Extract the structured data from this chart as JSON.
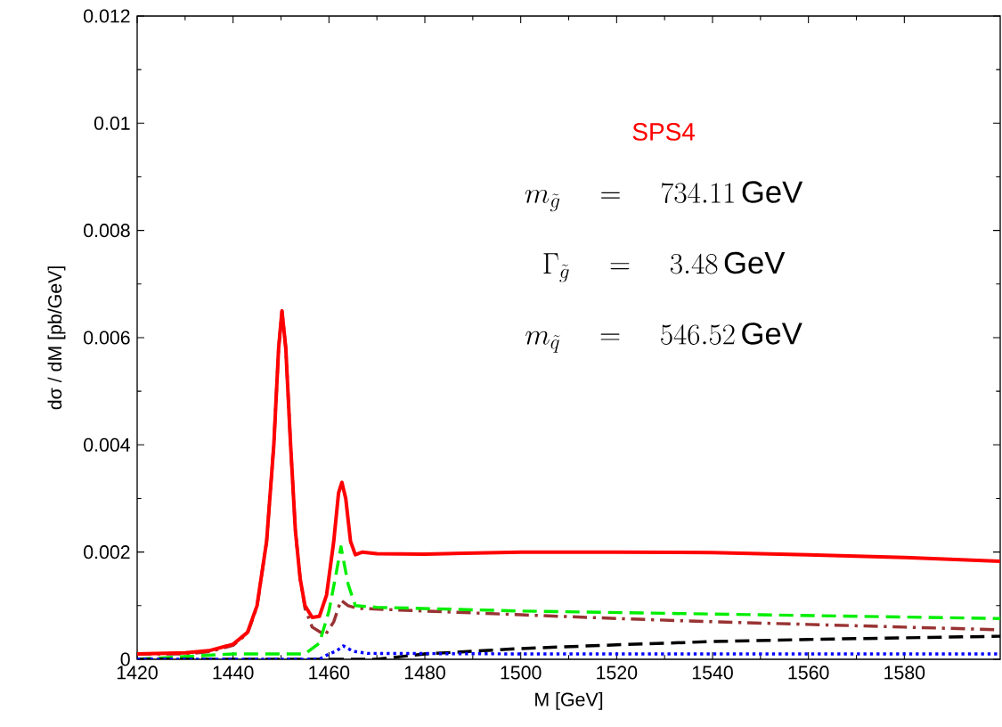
{
  "chart_data": {
    "type": "line",
    "xlabel": "M [GeV]",
    "ylabel": "dσ / dM [pb/GeV]",
    "xlim": [
      1420,
      1600
    ],
    "ylim": [
      0,
      0.012
    ],
    "xticks": [
      1420,
      1440,
      1460,
      1480,
      1500,
      1520,
      1540,
      1560,
      1580
    ],
    "yticks": [
      0,
      0.002,
      0.004,
      0.006,
      0.008,
      0.01,
      0.012
    ],
    "grid": false,
    "marker": "none",
    "annotations": [
      "SPS4",
      "m_{\\tilde{g}} \\quad = \\quad 734.11\\,\\mathrm{GeV}",
      "\\Gamma_{\\tilde{g}} \\quad = \\quad 3.48\\,\\mathrm{GeV}",
      "m_{\\tilde{q}} \\quad = \\quad 546.52\\,\\mathrm{GeV}"
    ],
    "series": [
      {
        "color": "#ff0000",
        "line_style": "solid",
        "x": [
          1420,
          1430,
          1435,
          1440,
          1443,
          1445,
          1447,
          1448.5,
          1449.5,
          1450.2,
          1451,
          1452,
          1453,
          1454,
          1455,
          1456.5,
          1458,
          1459.5,
          1461,
          1462,
          1462.7,
          1463.5,
          1464.5,
          1465.5,
          1467,
          1470,
          1480,
          1500,
          1520,
          1540,
          1560,
          1580,
          1600
        ],
        "values": [
          0.0001,
          0.00012,
          0.00016,
          0.00028,
          0.0005,
          0.001,
          0.0022,
          0.004,
          0.0058,
          0.0065,
          0.0058,
          0.004,
          0.0024,
          0.0015,
          0.001,
          0.00078,
          0.0008,
          0.0012,
          0.0022,
          0.0031,
          0.0033,
          0.003,
          0.0022,
          0.00195,
          0.002,
          0.00197,
          0.00196,
          0.002,
          0.002,
          0.00199,
          0.00195,
          0.0019,
          0.00183
        ]
      },
      {
        "color": "#993333",
        "line_style": "dashdot",
        "x": [
          1420,
          1430,
          1435,
          1440,
          1443,
          1445,
          1447,
          1448.5,
          1449.5,
          1450.2,
          1451,
          1452,
          1453,
          1454,
          1455,
          1456.5,
          1459.2,
          1461,
          1462.5,
          1464,
          1466,
          1480,
          1500,
          1520,
          1540,
          1560,
          1580,
          1600
        ],
        "values": [
          0.0001,
          0.0001,
          0.00014,
          0.00026,
          0.00048,
          0.00098,
          0.0022,
          0.004,
          0.0058,
          0.0065,
          0.0058,
          0.004,
          0.0024,
          0.0015,
          0.00095,
          0.0006,
          0.00045,
          0.0007,
          0.0011,
          0.001,
          0.00095,
          0.0009,
          0.00083,
          0.00076,
          0.0007,
          0.00065,
          0.0006,
          0.00055
        ]
      },
      {
        "color": "#00ee00",
        "line_style": "dashed",
        "x": [
          1420,
          1440,
          1455,
          1458,
          1460,
          1461.5,
          1462.5,
          1464,
          1465.5,
          1470,
          1500,
          1550,
          1600
        ],
        "values": [
          0,
          0.0001,
          0.0001,
          0.0003,
          0.0009,
          0.0016,
          0.0021,
          0.0014,
          0.001,
          0.00097,
          0.0009,
          0.00083,
          0.00076
        ]
      },
      {
        "color": "#000000",
        "line_style": "dashed",
        "x": [
          1420,
          1455,
          1470,
          1480,
          1500,
          1520,
          1540,
          1560,
          1580,
          1600
        ],
        "values": [
          0,
          0,
          0,
          0.0001,
          0.0002,
          0.00027,
          0.00033,
          0.00037,
          0.0004,
          0.00043
        ]
      },
      {
        "color": "#0000ff",
        "line_style": "dotted",
        "x": [
          1420,
          1455,
          1458,
          1460,
          1461.5,
          1463,
          1465,
          1468,
          1500,
          1600
        ],
        "values": [
          0,
          0,
          0,
          0.0001,
          0.00015,
          0.00025,
          0.00015,
          0.00011,
          0.0001,
          0.0001
        ]
      }
    ]
  }
}
